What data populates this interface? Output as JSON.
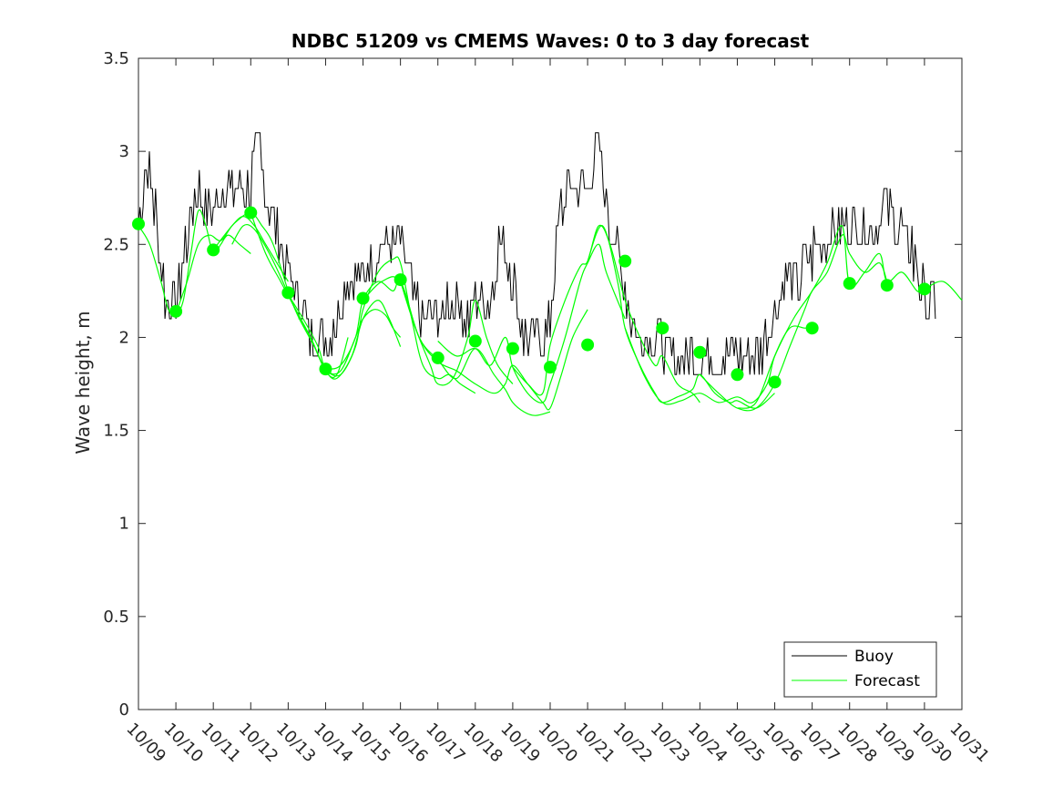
{
  "chart_data": {
    "type": "line",
    "title": "NDBC 51209 vs CMEMS Waves: 0 to 3 day forecast",
    "xlabel": "",
    "ylabel": "Wave height, m",
    "xlim": [
      0,
      22
    ],
    "ylim": [
      0,
      3.5
    ],
    "x_ticks": [
      0,
      1,
      2,
      3,
      4,
      5,
      6,
      7,
      8,
      9,
      10,
      11,
      12,
      13,
      14,
      15,
      16,
      17,
      18,
      19,
      20,
      21,
      22
    ],
    "x_tick_labels": [
      "10/09",
      "10/10",
      "10/11",
      "10/12",
      "10/13",
      "10/14",
      "10/15",
      "10/16",
      "10/17",
      "10/18",
      "10/19",
      "10/20",
      "10/21",
      "10/22",
      "10/23",
      "10/24",
      "10/25",
      "10/26",
      "10/27",
      "10/28",
      "10/29",
      "10/30",
      "10/31"
    ],
    "y_ticks": [
      0,
      0.5,
      1,
      1.5,
      2,
      2.5,
      3,
      3.5
    ],
    "y_tick_labels": [
      "0",
      "0.5",
      "1",
      "1.5",
      "2",
      "2.5",
      "3",
      "3.5"
    ],
    "legend": {
      "location": "bottom-right",
      "entries": [
        "Buoy",
        "Forecast"
      ]
    },
    "colors": {
      "buoy": "#000000",
      "forecast": "#00ff00",
      "marker": "#00ff00",
      "axis": "#262626"
    },
    "buoy_envelope": {
      "x": [
        0,
        0.2,
        0.4,
        0.5,
        0.7,
        1.0,
        1.3,
        1.5,
        1.8,
        2.0,
        2.3,
        2.6,
        3.0,
        3.2,
        3.5,
        3.8,
        4.0,
        4.3,
        4.6,
        5.0,
        5.3,
        5.6,
        5.9,
        6.2,
        6.5,
        6.8,
        7.0,
        7.3,
        7.6,
        7.9,
        8.2,
        8.5,
        8.8,
        9.1,
        9.4,
        9.7,
        10.0,
        10.3,
        10.6,
        10.8,
        11.0,
        11.2,
        11.4,
        11.7,
        12.0,
        12.3,
        12.5,
        12.8,
        13.0,
        13.3,
        13.6,
        14.0,
        14.3,
        14.6,
        15.0,
        15.3,
        15.6,
        16.0,
        16.4,
        16.8,
        17.0,
        17.3,
        17.6,
        18.0,
        18.3,
        18.6,
        19.0,
        19.3,
        19.6,
        20.0,
        20.3,
        20.6,
        20.9,
        21.1,
        21.3
      ],
      "y": [
        2.6,
        2.95,
        2.75,
        2.6,
        2.2,
        2.2,
        2.5,
        2.8,
        2.7,
        2.7,
        2.8,
        2.75,
        2.85,
        3.05,
        2.7,
        2.5,
        2.35,
        2.2,
        2.0,
        1.95,
        2.1,
        2.35,
        2.3,
        2.4,
        2.5,
        2.55,
        2.5,
        2.25,
        2.1,
        2.05,
        2.15,
        2.2,
        2.1,
        2.25,
        2.2,
        2.55,
        2.3,
        2.0,
        1.95,
        1.95,
        2.1,
        2.6,
        2.75,
        2.75,
        2.8,
        3.05,
        2.7,
        2.45,
        2.25,
        2.05,
        2.0,
        1.95,
        1.9,
        1.9,
        1.85,
        1.9,
        1.9,
        1.85,
        1.85,
        2.0,
        2.15,
        2.3,
        2.3,
        2.45,
        2.5,
        2.6,
        2.6,
        2.65,
        2.6,
        2.7,
        2.6,
        2.5,
        2.3,
        2.2,
        2.15
      ]
    },
    "forecast_runs": [
      {
        "x": [
          0,
          0.3,
          0.6,
          0.8,
          1.0,
          1.2,
          1.4,
          1.6,
          1.8,
          2.0,
          2.2,
          2.4,
          2.7,
          3.0
        ],
        "y": [
          2.6,
          2.5,
          2.3,
          2.15,
          2.12,
          2.2,
          2.45,
          2.68,
          2.6,
          2.45,
          2.5,
          2.55,
          2.5,
          2.45
        ]
      },
      {
        "x": [
          1.0,
          1.3,
          1.6,
          1.9,
          2.2,
          2.5,
          2.8,
          3.1,
          3.4,
          3.7,
          4.0
        ],
        "y": [
          2.13,
          2.3,
          2.5,
          2.55,
          2.52,
          2.6,
          2.65,
          2.6,
          2.5,
          2.4,
          2.3
        ]
      },
      {
        "x": [
          2.0,
          2.3,
          2.6,
          3.0,
          3.3,
          3.6,
          4.0,
          4.3,
          4.6,
          5.0,
          5.3,
          5.6
        ],
        "y": [
          2.47,
          2.55,
          2.62,
          2.67,
          2.6,
          2.5,
          2.25,
          2.1,
          2.0,
          1.82,
          1.8,
          2.0
        ]
      },
      {
        "x": [
          2.5,
          2.8,
          3.1,
          3.5,
          3.9,
          4.3,
          4.7,
          5.0,
          5.3,
          5.7,
          6.0,
          6.4,
          6.7,
          7.0
        ],
        "y": [
          2.5,
          2.6,
          2.58,
          2.45,
          2.28,
          2.1,
          1.95,
          1.82,
          1.78,
          1.9,
          2.1,
          2.2,
          2.1,
          1.95
        ]
      },
      {
        "x": [
          3.0,
          3.4,
          3.8,
          4.2,
          4.6,
          5.0,
          5.4,
          5.8,
          6.0,
          6.3,
          6.6,
          6.8,
          7.0
        ],
        "y": [
          2.67,
          2.45,
          2.3,
          2.15,
          2.0,
          1.83,
          1.82,
          2.0,
          2.1,
          2.15,
          2.12,
          2.05,
          2.0
        ]
      },
      {
        "x": [
          4.0,
          4.4,
          4.8,
          5.0,
          5.4,
          5.8,
          6.0,
          6.4,
          6.8,
          7.0,
          7.3,
          7.6,
          8.0,
          8.3,
          8.6,
          9.0
        ],
        "y": [
          2.23,
          2.1,
          1.95,
          1.83,
          1.8,
          1.95,
          2.15,
          2.35,
          2.42,
          2.4,
          2.1,
          1.85,
          1.78,
          1.8,
          1.75,
          1.7
        ]
      },
      {
        "x": [
          5.0,
          5.4,
          5.8,
          6.0,
          6.4,
          6.8,
          7.0,
          7.4,
          7.8,
          8.0,
          8.4,
          8.8,
          9.0,
          9.3,
          9.6,
          10.0
        ],
        "y": [
          1.83,
          1.85,
          2.0,
          2.2,
          2.3,
          2.25,
          2.3,
          2.05,
          1.85,
          1.75,
          1.78,
          2.0,
          2.2,
          2.0,
          1.85,
          1.75
        ]
      },
      {
        "x": [
          6.0,
          6.5,
          7.0,
          7.5,
          8.0,
          8.5,
          9.0,
          9.5,
          9.8,
          10.0,
          10.3,
          10.6,
          11.0
        ],
        "y": [
          2.2,
          2.3,
          2.3,
          2.0,
          1.88,
          1.78,
          1.94,
          1.8,
          1.72,
          1.65,
          1.6,
          1.58,
          1.6
        ]
      },
      {
        "x": [
          7.0,
          7.5,
          8.0,
          8.5,
          9.0,
          9.5,
          9.8,
          10.0,
          10.4,
          10.8,
          11.0,
          11.3,
          11.6,
          12.0
        ],
        "y": [
          2.3,
          2.0,
          1.87,
          1.82,
          1.75,
          1.7,
          1.75,
          1.85,
          1.75,
          1.65,
          1.62,
          1.8,
          2.0,
          2.15
        ]
      },
      {
        "x": [
          8.0,
          8.5,
          9.0,
          9.4,
          9.8,
          10.0,
          10.4,
          10.8,
          11.0,
          11.4,
          11.8,
          12.0,
          12.3,
          12.5,
          13.0
        ],
        "y": [
          1.98,
          1.9,
          1.94,
          1.85,
          2.0,
          1.84,
          1.7,
          1.65,
          1.75,
          2.0,
          2.3,
          2.4,
          2.5,
          2.35,
          2.1
        ]
      },
      {
        "x": [
          10.0,
          10.4,
          10.8,
          11.0,
          11.4,
          11.8,
          12.0,
          12.3,
          12.6,
          13.0,
          13.4,
          13.8,
          14.0,
          14.4,
          14.8,
          15.0
        ],
        "y": [
          1.84,
          1.75,
          1.7,
          1.96,
          2.2,
          2.38,
          2.41,
          2.6,
          2.5,
          2.2,
          2.0,
          1.85,
          1.9,
          1.75,
          1.7,
          1.65
        ]
      },
      {
        "x": [
          12.0,
          12.4,
          12.8,
          13.0,
          13.4,
          13.8,
          14.0,
          14.4,
          14.8,
          15.0,
          15.4,
          15.8,
          16.0,
          16.5,
          17.0
        ],
        "y": [
          2.41,
          2.6,
          2.3,
          2.05,
          1.85,
          1.7,
          1.65,
          1.68,
          1.72,
          1.8,
          1.7,
          1.65,
          1.66,
          1.62,
          1.7
        ]
      },
      {
        "x": [
          13.0,
          13.5,
          14.0,
          14.5,
          15.0,
          15.5,
          16.0,
          16.4,
          16.8,
          17.0,
          17.4,
          17.8,
          18.0
        ],
        "y": [
          2.05,
          1.8,
          1.65,
          1.66,
          1.7,
          1.65,
          1.68,
          1.65,
          1.75,
          1.9,
          2.05,
          2.05,
          2.05
        ]
      },
      {
        "x": [
          15.0,
          15.5,
          16.0,
          16.5,
          17.0,
          17.4,
          17.8,
          18.0,
          18.4,
          18.8,
          19.0,
          19.4,
          19.8,
          20.0
        ],
        "y": [
          1.8,
          1.7,
          1.62,
          1.62,
          1.75,
          1.95,
          2.15,
          2.25,
          2.35,
          2.55,
          2.45,
          2.35,
          2.4,
          2.3
        ]
      },
      {
        "x": [
          16.0,
          16.5,
          17.0,
          17.5,
          18.0,
          18.4,
          18.8,
          19.0,
          19.4,
          19.8,
          20.0,
          20.4,
          20.8,
          21.0,
          21.5,
          22.0
        ],
        "y": [
          1.62,
          1.65,
          1.9,
          2.1,
          2.25,
          2.4,
          2.6,
          2.28,
          2.35,
          2.45,
          2.3,
          2.35,
          2.25,
          2.26,
          2.3,
          2.2
        ]
      }
    ],
    "forecast_markers": {
      "x": [
        0,
        1,
        2,
        3,
        4,
        5,
        6,
        7,
        8,
        9,
        10,
        11,
        12,
        13,
        14,
        15,
        16,
        17,
        18,
        19,
        20,
        21
      ],
      "y": [
        2.61,
        2.14,
        2.47,
        2.67,
        2.24,
        1.83,
        2.21,
        2.31,
        1.89,
        1.98,
        1.94,
        1.84,
        1.96,
        2.41,
        2.05,
        1.92,
        1.8,
        1.76,
        2.05,
        2.29,
        2.28,
        2.26
      ]
    }
  }
}
